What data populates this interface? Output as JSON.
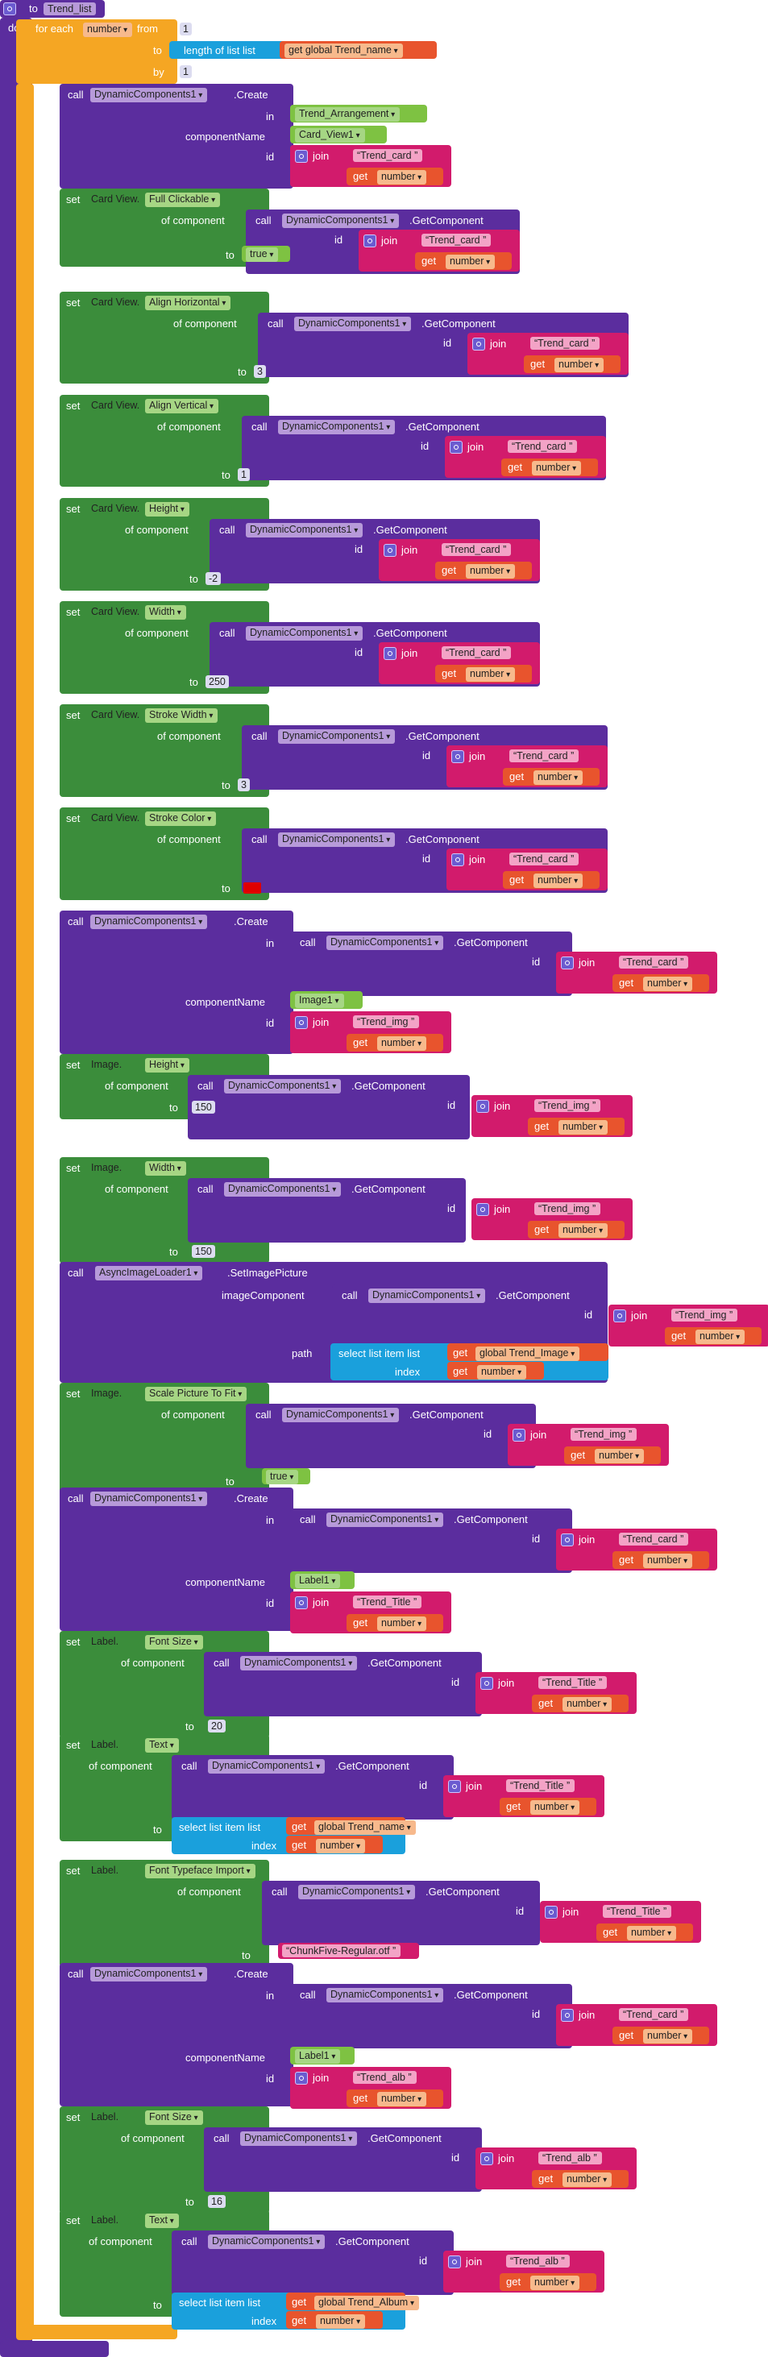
{
  "procedure": {
    "keyword": "to",
    "name": "Trend_list",
    "do": "do"
  },
  "loop": {
    "label": "for each",
    "var": "number",
    "from": "from",
    "to": "to",
    "by": "by",
    "from_val": "1",
    "length_label": "length of list  list",
    "get_list": "get global Trend_name",
    "by_val": "1",
    "do": "do"
  },
  "kw": {
    "call": "call",
    "in": "in",
    "componentName": "componentName",
    "id": "id",
    "join": "join",
    "get": "get",
    "of_component": "of component",
    "to": "to",
    "set": "set",
    "create": ".Create",
    "getcomponent": ".GetComponent",
    "setimage": ".SetImagePicture",
    "imageComponent": "imageComponent",
    "path": "path",
    "select": "select list item  list",
    "index": "index"
  },
  "comp": {
    "dyn": "DynamicComponents1",
    "async": "AsyncImageLoader1"
  },
  "values": {
    "trend_arrangement": "Trend_Arrangement",
    "card_view": "Card_View1",
    "trend_card": "Trend_card",
    "trend_img": "Trend_img",
    "trend_title": "Trend_Title",
    "trend_alb": "Trend_alb",
    "image1": "Image1",
    "label1": "Label1",
    "number": "number",
    "true": "true",
    "3": "3",
    "1": "1",
    "-2": "-2",
    "250": "250",
    "150": "150",
    "20": "20",
    "16": "16",
    "font": "ChunkFive-Regular.otf",
    "global_trend_image": "global Trend_Image",
    "global_trend_name": "global Trend_name",
    "global_trend_album": "global Trend_Album"
  },
  "setters": {
    "cv_full_clickable": {
      "comp": "Card View.",
      "prop": "Full Clickable"
    },
    "cv_align_h": {
      "comp": "Card View.",
      "prop": "Align Horizontal"
    },
    "cv_align_v": {
      "comp": "Card View.",
      "prop": "Align Vertical"
    },
    "cv_height": {
      "comp": "Card View.",
      "prop": "Height"
    },
    "cv_width": {
      "comp": "Card View.",
      "prop": "Width"
    },
    "cv_stroke_w": {
      "comp": "Card View.",
      "prop": "Stroke Width"
    },
    "cv_stroke_c": {
      "comp": "Card View.",
      "prop": "Stroke Color"
    },
    "img_height": {
      "comp": "Image.",
      "prop": "Height"
    },
    "img_width": {
      "comp": "Image.",
      "prop": "Width"
    },
    "img_scale": {
      "comp": "Image.",
      "prop": "Scale Picture To Fit"
    },
    "lbl_fontsize": {
      "comp": "Label.",
      "prop": "Font Size"
    },
    "lbl_text": {
      "comp": "Label.",
      "prop": "Text"
    },
    "lbl_typeface": {
      "comp": "Label.",
      "prop": "Font Typeface Import"
    }
  },
  "colors": {
    "procedure": "#5b2d9e",
    "loop": "#f5a623",
    "setter": "#3b8d3b",
    "text": "#d21b6c",
    "get": "#e8542d",
    "list": "#1aa0dc",
    "stroke_color": "#e00000"
  }
}
